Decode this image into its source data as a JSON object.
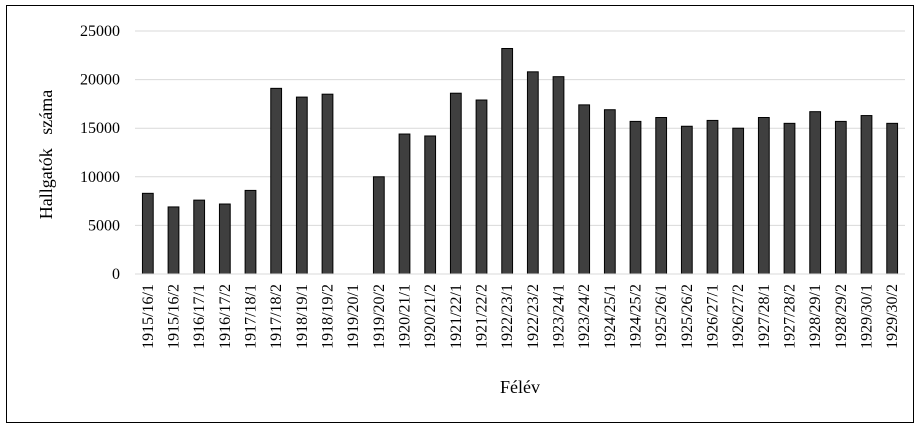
{
  "chart_data": {
    "type": "bar",
    "xlabel": "Félév",
    "ylabel": "Hallgatók   száma",
    "ylim": [
      0,
      25000
    ],
    "yticks": [
      0,
      5000,
      10000,
      15000,
      20000,
      25000
    ],
    "grid": true,
    "categories": [
      "1915/16/1",
      "1915/16/2",
      "1916/17/1",
      "1916/17/2",
      "1917/18/1",
      "1917/18/2",
      "1918/19/1",
      "1918/19/2",
      "1919/20/1",
      "1919/20/2",
      "1920/21/1",
      "1920/21/2",
      "1921/22/1",
      "1921/22/2",
      "1922/23/1",
      "1922/23/2",
      "1923/24/1",
      "1923/24/2",
      "1924/25/1",
      "1924/25/2",
      "1925/26/1",
      "1925/26/2",
      "1926/27/1",
      "1926/27/2",
      "1927/28/1",
      "1927/28/2",
      "1928/29/1",
      "1928/29/2",
      "1929/30/1",
      "1929/30/2"
    ],
    "values": [
      8300,
      6900,
      7600,
      7200,
      8600,
      19100,
      18200,
      18500,
      0,
      10000,
      14400,
      14200,
      18600,
      17900,
      23200,
      20800,
      20300,
      17400,
      16900,
      15700,
      16100,
      15200,
      15800,
      15000,
      16100,
      15500,
      16700,
      15700,
      16300,
      15500
    ]
  }
}
